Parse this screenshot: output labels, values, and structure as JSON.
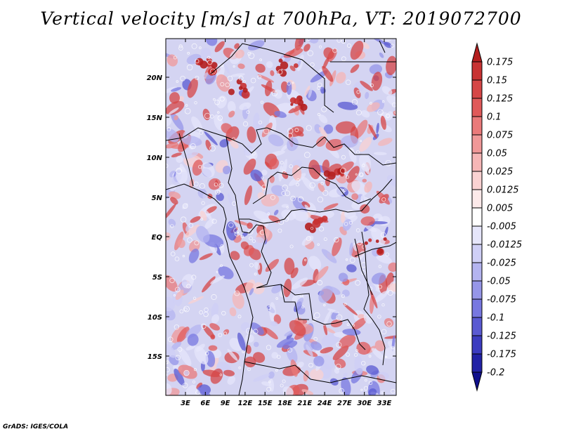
{
  "title": "Vertical velocity [m/s] at 700hPa, VT: 2019072700",
  "credit": "GrADS: IGES/COLA",
  "map": {
    "lat_labels": [
      "20N",
      "15N",
      "10N",
      "5N",
      "EQ",
      "5S",
      "10S",
      "15S"
    ],
    "lon_labels": [
      "3E",
      "6E",
      "9E",
      "12E",
      "15E",
      "18E",
      "21E",
      "24E",
      "27E",
      "30E",
      "33E"
    ]
  },
  "colorbar": {
    "labels": [
      "0.175",
      "0.15",
      "0.125",
      "0.1",
      "0.075",
      "0.05",
      "0.025",
      "0.0125",
      "0.005",
      "-0.005",
      "-0.0125",
      "-0.025",
      "-0.05",
      "-0.075",
      "-0.1",
      "-0.125",
      "-0.175",
      "-0.2"
    ],
    "colors": [
      "#b41e1e",
      "#c83232",
      "#d64646",
      "#e05a5a",
      "#ea7a7a",
      "#f09898",
      "#f6b6b6",
      "#fad2d2",
      "#fdeaea",
      "#ffffff",
      "#e6e6fb",
      "#cfcff6",
      "#b4b4f0",
      "#9696e8",
      "#7878e0",
      "#5a5ad2",
      "#3c3cc0",
      "#2222a6",
      "#10108c"
    ]
  }
}
